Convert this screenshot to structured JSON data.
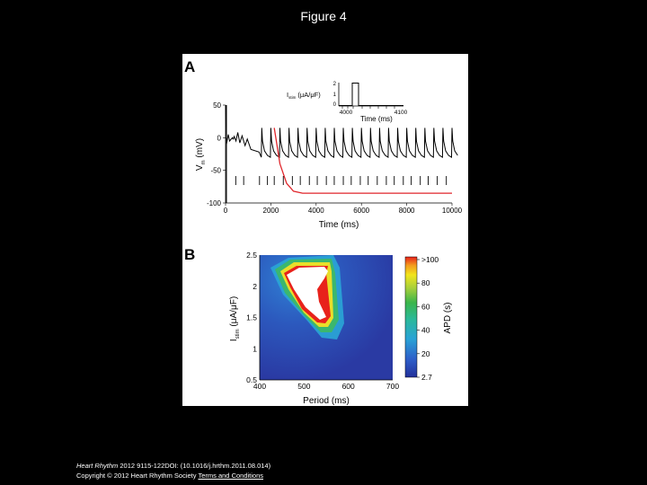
{
  "slide": {
    "title": "Figure 4"
  },
  "footer": {
    "citation_journal": "Heart Rhythm",
    "citation_rest": " 2012 9115-122DOI: (10.1016/j.hrthm.2011.08.014)",
    "copyright": "Copyright © 2012 Heart Rhythm Society",
    "terms_link": "Terms and Conditions"
  },
  "colors": {
    "black_trace": "#000000",
    "red_trace": "#e0262b",
    "heatmap_low": "#2b3aa6",
    "heatmap_high": "#e8221b"
  },
  "panel_a": {
    "label": "A",
    "xlabel": "Time (ms)",
    "ylabel": "V",
    "ylabel_sub": "m",
    "ylabel_unit": " (mV)",
    "inset": {
      "ylabel": "I",
      "ylabel_sub": "stim",
      "ylabel_unit": " (μA/μF)",
      "xlabel": "Time (ms)",
      "xticks": [
        "4000",
        "4100"
      ],
      "yticks": [
        "0",
        "1",
        "2"
      ]
    }
  },
  "panel_b": {
    "label": "B",
    "xlabel": "Period (ms)",
    "ylabel": "I",
    "ylabel_sub": "stim",
    "ylabel_unit": " (μA/μF)",
    "colorbar_label": "APD (s)",
    "colorbar_ticks": [
      ">100",
      "80",
      "60",
      "40",
      "20",
      "2.7"
    ]
  },
  "chart_data": [
    {
      "type": "line",
      "panel": "A",
      "xlabel": "Time (ms)",
      "ylabel": "Vm (mV)",
      "xlim": [
        0,
        10000
      ],
      "ylim": [
        -100,
        50
      ],
      "xticks": [
        0,
        2000,
        4000,
        6000,
        8000,
        10000
      ],
      "yticks": [
        -100,
        -50,
        0,
        50
      ],
      "series": [
        {
          "color": "black",
          "beat_period_ms": 400,
          "first_beat_ms": 300,
          "beats_start_ms": 1600,
          "peak_mV": 15,
          "trough_mV": -30,
          "stim_marks_ms": [
            450,
            800,
            1500,
            1850,
            2150,
            2550,
            2950,
            3300,
            3700,
            4050,
            4450,
            4800,
            5200,
            5550,
            5950,
            6300,
            6700,
            7100,
            7450,
            7850,
            8200,
            8600,
            8950,
            9350,
            9750
          ]
        },
        {
          "color": "red",
          "x": [
            2150,
            2400,
            2700,
            3000,
            3400,
            10000
          ],
          "y": [
            15,
            -40,
            -70,
            -82,
            -85,
            -85
          ]
        }
      ]
    },
    {
      "type": "line",
      "panel": "A inset",
      "xlabel": "Time (ms)",
      "ylabel": "Istim (μA/μF)",
      "xlim": [
        4000,
        4100
      ],
      "ylim": [
        0,
        2
      ],
      "series": [
        {
          "x": [
            4000,
            4020,
            4020,
            4030,
            4030,
            4100
          ],
          "y": [
            0,
            0,
            2,
            2,
            0,
            0
          ]
        }
      ]
    },
    {
      "type": "heatmap",
      "panel": "B",
      "xlabel": "Period (ms)",
      "ylabel": "Istim (μA/μF)",
      "xlim": [
        400,
        700
      ],
      "ylim": [
        0.5,
        2.5
      ],
      "xticks": [
        400,
        500,
        600,
        700
      ],
      "yticks": [
        0.5,
        1,
        1.5,
        2,
        2.5
      ],
      "colorbar": {
        "label": "APD (s)",
        "min": 2.7,
        "max": 100,
        "ticks": [
          "2.7",
          "20",
          "40",
          "60",
          "80",
          ">100"
        ]
      },
      "white_region_outline": [
        [
          440,
          2.05
        ],
        [
          475,
          2.35
        ],
        [
          500,
          2.45
        ],
        [
          525,
          2.45
        ],
        [
          560,
          2.2
        ],
        [
          540,
          1.95
        ],
        [
          520,
          1.75
        ],
        [
          500,
          1.55
        ],
        [
          470,
          1.8
        ]
      ]
    }
  ]
}
